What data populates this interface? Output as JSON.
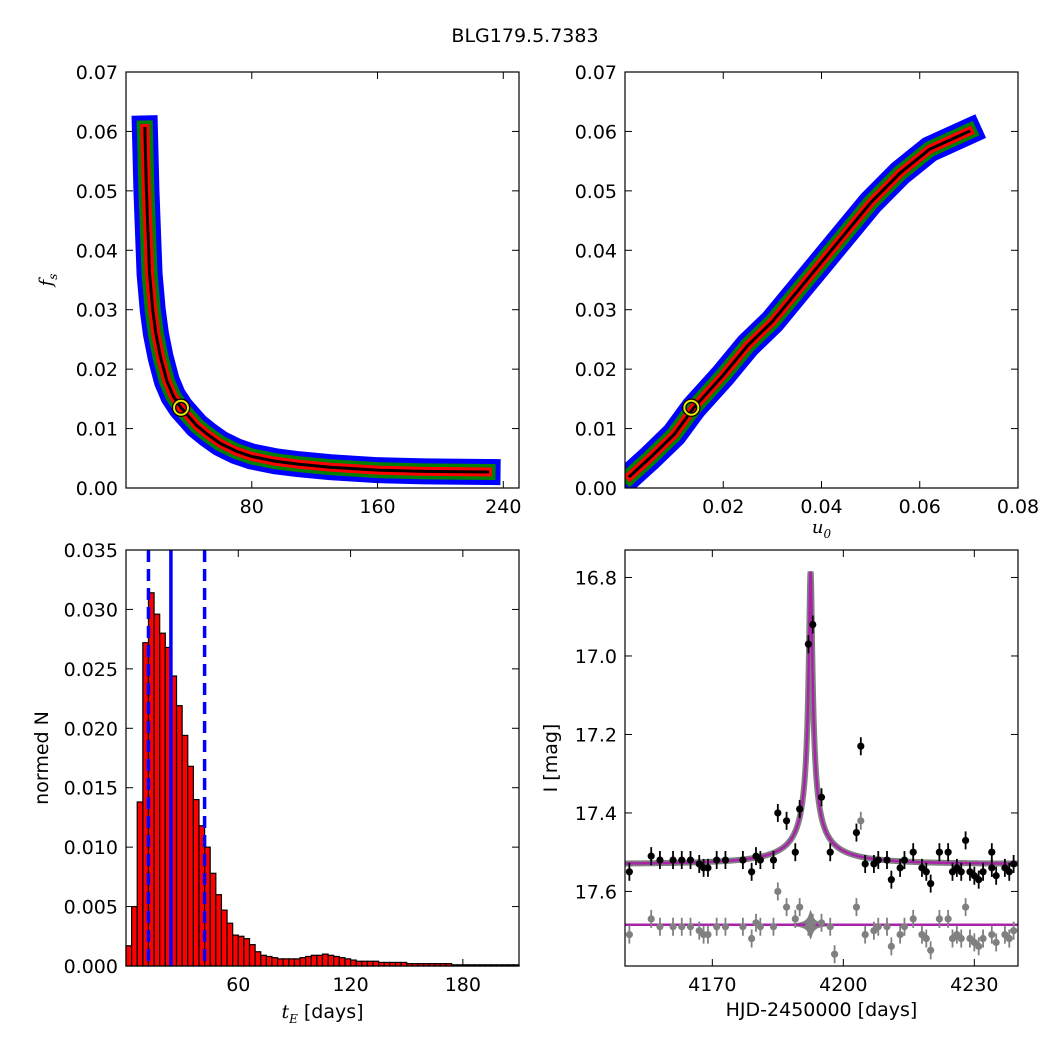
{
  "figure_title": "BLG179.5.7383",
  "chart_data": [
    {
      "id": "panel-fs-vs-tE",
      "type": "heatmap",
      "xlabel": "",
      "ylabel_base": "f",
      "ylabel_sub": "s",
      "xlim": [
        0,
        250
      ],
      "ylim": [
        0,
        0.07
      ],
      "xticks": [
        80,
        160,
        240
      ],
      "yticks": [
        0.0,
        0.01,
        0.02,
        0.03,
        0.04,
        0.05,
        0.06,
        0.07
      ],
      "colors": {
        "outer": "#0000ff",
        "middle": "#008000",
        "inner": "#ff0000",
        "core": "#000000"
      },
      "curve_points": [
        [
          12,
          0.0605
        ],
        [
          13,
          0.05
        ],
        [
          14,
          0.043
        ],
        [
          15,
          0.036
        ],
        [
          17,
          0.03
        ],
        [
          19,
          0.026
        ],
        [
          22,
          0.022
        ],
        [
          26,
          0.018
        ],
        [
          30,
          0.0155
        ],
        [
          35,
          0.0135
        ],
        [
          40,
          0.012
        ],
        [
          45,
          0.0105
        ],
        [
          52,
          0.009
        ],
        [
          60,
          0.0075
        ],
        [
          70,
          0.0062
        ],
        [
          80,
          0.0053
        ],
        [
          95,
          0.0045
        ],
        [
          110,
          0.004
        ],
        [
          130,
          0.0035
        ],
        [
          160,
          0.003
        ],
        [
          190,
          0.0028
        ],
        [
          230,
          0.0027
        ]
      ],
      "best_fit": {
        "x": 35,
        "y": 0.0135
      }
    },
    {
      "id": "panel-fs-vs-u0",
      "type": "heatmap",
      "xlabel_base": "u",
      "xlabel_sub": "0",
      "ylabel": "",
      "xlim": [
        0,
        0.08
      ],
      "ylim": [
        0,
        0.07
      ],
      "xticks": [
        0.02,
        0.04,
        0.06,
        0.08
      ],
      "yticks": [
        0.0,
        0.01,
        0.02,
        0.03,
        0.04,
        0.05,
        0.06,
        0.07
      ],
      "colors": {
        "outer": "#0000ff",
        "middle": "#008000",
        "inner": "#ff0000",
        "core": "#000000"
      },
      "curve_points": [
        [
          0.001,
          0.002
        ],
        [
          0.005,
          0.005
        ],
        [
          0.01,
          0.009
        ],
        [
          0.014,
          0.0135
        ],
        [
          0.02,
          0.019
        ],
        [
          0.025,
          0.024
        ],
        [
          0.03,
          0.028
        ],
        [
          0.035,
          0.033
        ],
        [
          0.04,
          0.038
        ],
        [
          0.045,
          0.043
        ],
        [
          0.05,
          0.048
        ],
        [
          0.056,
          0.053
        ],
        [
          0.062,
          0.057
        ],
        [
          0.07,
          0.06
        ]
      ],
      "best_fit": {
        "x": 0.0135,
        "y": 0.0135
      }
    },
    {
      "id": "panel-histogram-tE",
      "type": "bar",
      "xlabel_base": "t",
      "xlabel_sub": "E",
      "xlabel_suffix": "[days]",
      "ylabel": "normed N",
      "xlim": [
        0,
        210
      ],
      "ylim": [
        0,
        0.035
      ],
      "xticks": [
        60,
        120,
        180
      ],
      "yticks": [
        0.0,
        0.005,
        0.01,
        0.015,
        0.02,
        0.025,
        0.03,
        0.035
      ],
      "bin_width": 3,
      "bin_start": 0,
      "values": [
        0.0017,
        0.005,
        0.0138,
        0.0272,
        0.0314,
        0.0296,
        0.028,
        0.0268,
        0.0244,
        0.0219,
        0.0194,
        0.0168,
        0.014,
        0.0118,
        0.01,
        0.0078,
        0.006,
        0.0047,
        0.0036,
        0.0026,
        0.0025,
        0.0023,
        0.0018,
        0.0012,
        0.0009,
        0.0008,
        0.0007,
        0.0006,
        0.0006,
        0.0006,
        0.0006,
        0.0007,
        0.0008,
        0.0009,
        0.0009,
        0.001,
        0.0009,
        0.0008,
        0.0007,
        0.0006,
        0.0005,
        0.0004,
        0.0004,
        0.0004,
        0.0004,
        0.0003,
        0.0003,
        0.0003,
        0.0003,
        0.0003,
        0.0002,
        0.0002,
        0.0002,
        0.0002,
        0.0002,
        0.0002,
        0.0002,
        0.0002,
        0.0001,
        0.0001,
        0.0001,
        0.0001,
        0.0001,
        0.0001,
        0.0001,
        0.0001,
        0.0001,
        0.0001,
        0.0001,
        0.0001
      ],
      "bar_color": "#ff0000",
      "median": 24,
      "lower": 12,
      "upper": 42,
      "line_color": "#0000ff"
    },
    {
      "id": "panel-lightcurve",
      "type": "scatter",
      "xlabel": "HJD-2450000 [days]",
      "ylabel": "I [mag]",
      "xlim": [
        4150,
        4240
      ],
      "ylim": [
        17.79,
        16.73
      ],
      "xticks": [
        4170,
        4200,
        4230
      ],
      "yticks": [
        16.8,
        17.0,
        17.2,
        17.4,
        17.6
      ],
      "model": {
        "t0": 4192.5,
        "tE": 24,
        "u0": 0.0135,
        "base_mag": 17.53,
        "fs": 0.0135,
        "offset_baseline": 17.685,
        "color": "#aa22aa"
      },
      "data_points": [
        [
          4151,
          17.55
        ],
        [
          4156,
          17.51
        ],
        [
          4158,
          17.52
        ],
        [
          4161,
          17.52
        ],
        [
          4163,
          17.52
        ],
        [
          4165,
          17.52
        ],
        [
          4167,
          17.53
        ],
        [
          4168,
          17.54
        ],
        [
          4169,
          17.54
        ],
        [
          4171,
          17.52
        ],
        [
          4173,
          17.52
        ],
        [
          4177,
          17.52
        ],
        [
          4179,
          17.55
        ],
        [
          4180,
          17.51
        ],
        [
          4181,
          17.52
        ],
        [
          4184,
          17.52
        ],
        [
          4185,
          17.4
        ],
        [
          4187,
          17.42
        ],
        [
          4189,
          17.5
        ],
        [
          4190,
          17.39
        ],
        [
          4192,
          16.97
        ],
        [
          4193,
          16.92
        ],
        [
          4195,
          17.36
        ],
        [
          4197,
          17.5
        ],
        [
          4203,
          17.45
        ],
        [
          4204,
          17.23
        ],
        [
          4205,
          17.53
        ],
        [
          4207,
          17.53
        ],
        [
          4208,
          17.52
        ],
        [
          4210,
          17.52
        ],
        [
          4211,
          17.57
        ],
        [
          4213,
          17.54
        ],
        [
          4214,
          17.52
        ],
        [
          4216,
          17.5
        ],
        [
          4218,
          17.54
        ],
        [
          4219,
          17.55
        ],
        [
          4220,
          17.58
        ],
        [
          4222,
          17.5
        ],
        [
          4224,
          17.5
        ],
        [
          4225,
          17.55
        ],
        [
          4226,
          17.54
        ],
        [
          4227,
          17.55
        ],
        [
          4228,
          17.47
        ],
        [
          4229,
          17.55
        ],
        [
          4230,
          17.56
        ],
        [
          4231,
          17.57
        ],
        [
          4232,
          17.55
        ],
        [
          4234,
          17.54
        ],
        [
          4234,
          17.5
        ],
        [
          4235,
          17.56
        ],
        [
          4237,
          17.54
        ],
        [
          4238,
          17.55
        ],
        [
          4239,
          17.53
        ]
      ],
      "residual_points": [
        [
          4151,
          17.71
        ],
        [
          4156,
          17.67
        ],
        [
          4158,
          17.69
        ],
        [
          4161,
          17.69
        ],
        [
          4163,
          17.69
        ],
        [
          4165,
          17.69
        ],
        [
          4167,
          17.7
        ],
        [
          4168,
          17.71
        ],
        [
          4169,
          17.71
        ],
        [
          4171,
          17.69
        ],
        [
          4173,
          17.69
        ],
        [
          4177,
          17.69
        ],
        [
          4179,
          17.72
        ],
        [
          4180,
          17.68
        ],
        [
          4181,
          17.69
        ],
        [
          4184,
          17.69
        ],
        [
          4185,
          17.6
        ],
        [
          4187,
          17.64
        ],
        [
          4189,
          17.67
        ],
        [
          4190,
          17.64
        ],
        [
          4192,
          17.69
        ],
        [
          4193,
          17.68
        ],
        [
          4195,
          17.68
        ],
        [
          4197,
          17.69
        ],
        [
          4198,
          17.76
        ],
        [
          4203,
          17.64
        ],
        [
          4204,
          17.42
        ],
        [
          4205,
          17.71
        ],
        [
          4207,
          17.7
        ],
        [
          4208,
          17.69
        ],
        [
          4210,
          17.69
        ],
        [
          4211,
          17.74
        ],
        [
          4213,
          17.71
        ],
        [
          4214,
          17.69
        ],
        [
          4216,
          17.67
        ],
        [
          4218,
          17.71
        ],
        [
          4219,
          17.72
        ],
        [
          4220,
          17.75
        ],
        [
          4222,
          17.67
        ],
        [
          4224,
          17.67
        ],
        [
          4225,
          17.72
        ],
        [
          4226,
          17.71
        ],
        [
          4227,
          17.72
        ],
        [
          4228,
          17.64
        ],
        [
          4229,
          17.72
        ],
        [
          4230,
          17.73
        ],
        [
          4231,
          17.74
        ],
        [
          4232,
          17.72
        ],
        [
          4234,
          17.71
        ],
        [
          4235,
          17.73
        ],
        [
          4237,
          17.71
        ],
        [
          4238,
          17.72
        ],
        [
          4239,
          17.7
        ]
      ],
      "data_color": "#000000",
      "residual_color": "#808080"
    }
  ]
}
